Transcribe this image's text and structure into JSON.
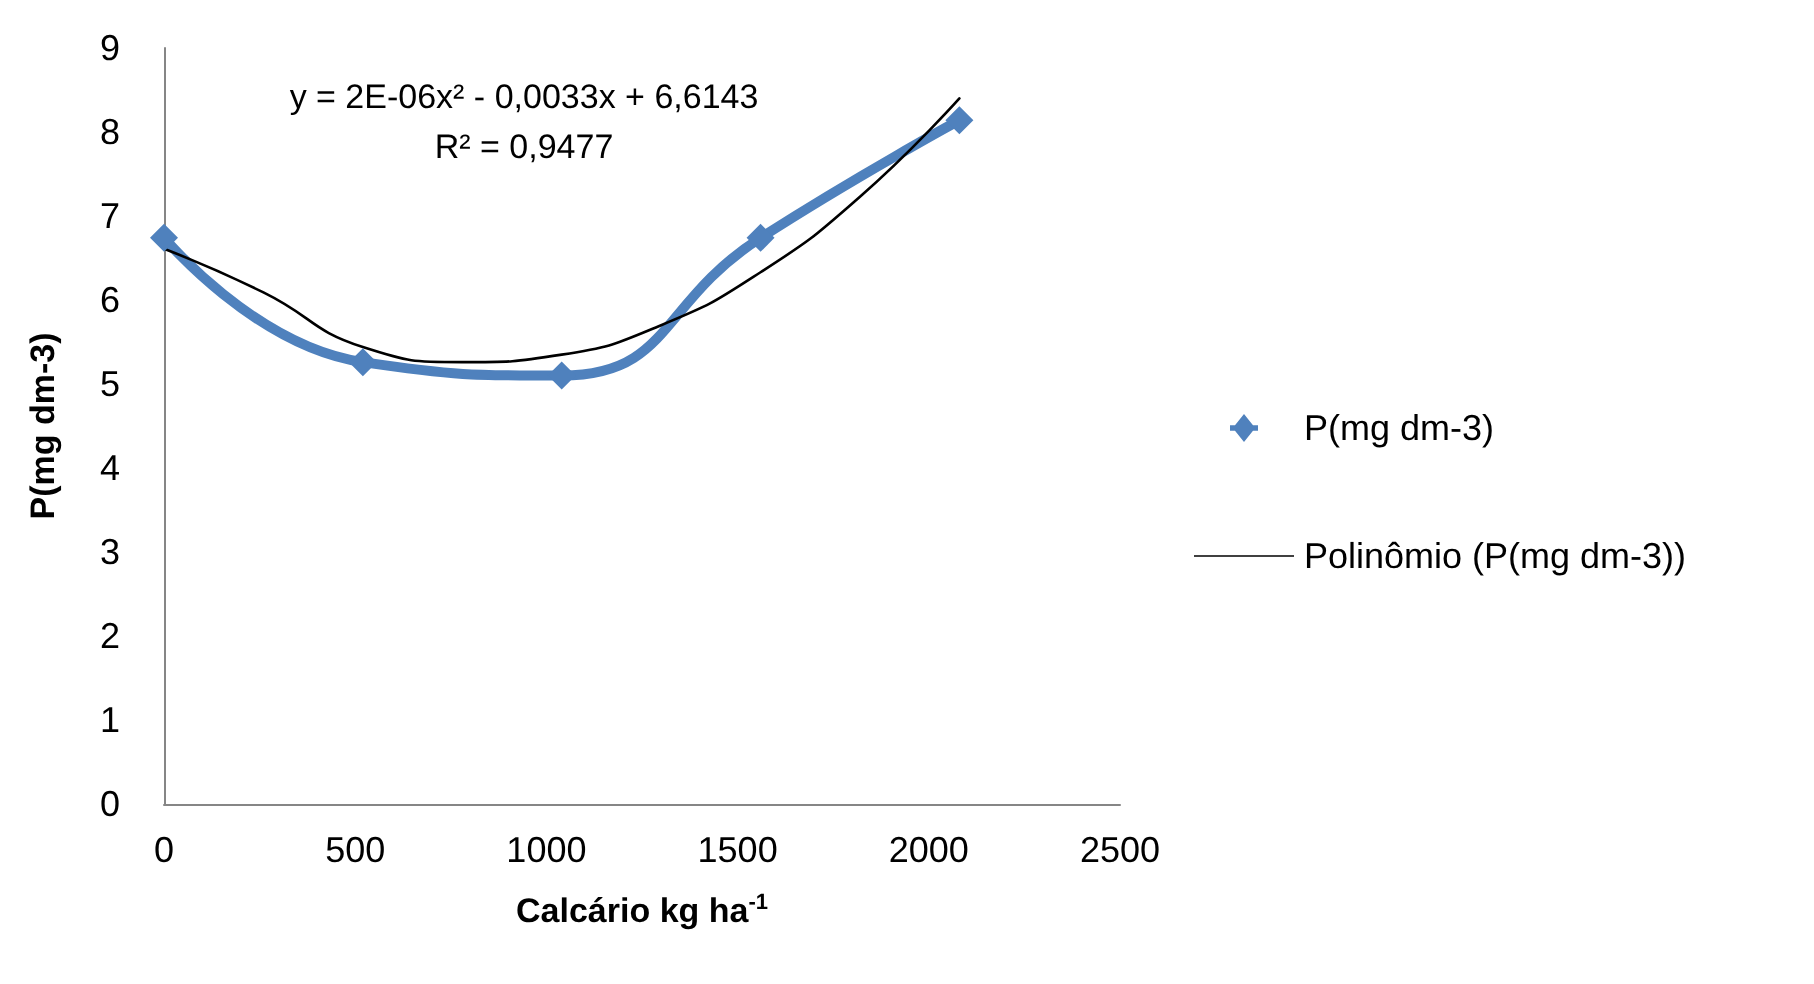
{
  "chart_data": {
    "type": "line",
    "xlabel": "Calcário kg ha$^{-1}$",
    "ylabel": "P(mg dm-3)",
    "xlim": [
      0,
      2500
    ],
    "xticks": [
      0,
      500,
      1000,
      1500,
      2000,
      2500
    ],
    "ylim": [
      0,
      9
    ],
    "yticks": [
      0,
      1,
      2,
      3,
      4,
      5,
      6,
      7,
      8,
      9
    ],
    "grid": false,
    "legend": "right",
    "series": [
      {
        "name": "P(mg dm-3)",
        "color": "#4f81bd",
        "x": [
          0,
          520,
          1040,
          1560,
          2080
        ],
        "values": [
          6.74,
          5.26,
          5.1,
          6.74,
          8.14
        ],
        "marker": "diamond"
      },
      {
        "name": "Polinômio (P(mg dm-3))",
        "color": "#000000",
        "x": [
          0,
          260,
          520,
          780,
          1040,
          1300,
          1560,
          1820,
          2080
        ],
        "values": [
          6.61,
          6.09,
          5.44,
          5.26,
          5.35,
          5.7,
          6.33,
          7.23,
          8.4
        ],
        "marker": "none"
      }
    ],
    "annotations": [
      "y = 2E-06x² - 0,0033x + 6,6143",
      "R² = 0,9477"
    ]
  }
}
